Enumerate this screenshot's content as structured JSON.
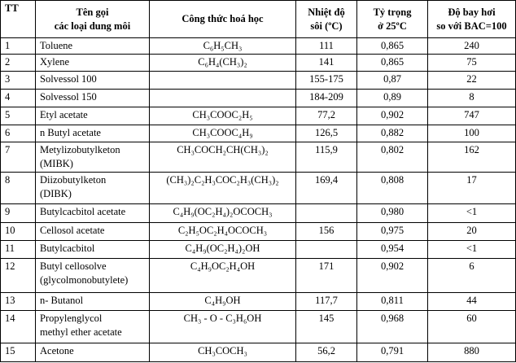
{
  "table": {
    "header": [
      "TT",
      "Tên gọi\ncác loại dung môi",
      "Công thức hoá học",
      "Nhiệt độ\nsôi (ºC)",
      "Tỷ trọng\nở 25ºC",
      "Độ bay hơi\nso với BAC=100"
    ],
    "rows": [
      [
        "1",
        "Toluene",
        "C₆H₅CH₃",
        "111",
        "0,865",
        "240"
      ],
      [
        "2",
        "Xylene",
        "C₆H₄(CH₃)₂",
        "141",
        "0,865",
        "75"
      ],
      [
        "3",
        "Solvessol 100",
        null,
        "155-175",
        "0,87",
        "22"
      ],
      [
        "4",
        "Solvessol 150",
        null,
        "184-209",
        "0,89",
        "8"
      ],
      [
        "5",
        "Etyl acetate",
        "CH₃COOC₂H₅",
        "77,2",
        "0,902",
        "747"
      ],
      [
        "6",
        "n Butyl acetate",
        "CH₃COOC₄H₉",
        "126,5",
        "0,882",
        "100"
      ],
      [
        "7",
        "Metylizobutylketon\n(MIBK)",
        "CH₃COCH₂CH(CH₃)₂",
        "115,9",
        "0,802",
        "162"
      ],
      [
        "8",
        "Diizobutylketon\n(DIBK)",
        "(CH₃)₂C₂H₃COC₂H₃(CH₃)₂",
        "169,4",
        "0,808",
        "17"
      ],
      [
        "9",
        "Butylcacbitol acetate",
        "C₄H₉(OC₂H₄)₂OCOCH₃",
        null,
        "0,980",
        "<1"
      ],
      [
        "10",
        "Cellosol acetate",
        "C₂H₅OC₂H₄OCOCH₃",
        "156",
        "0,975",
        "20"
      ],
      [
        "11",
        "Butylcacbitol",
        "C₄H₉(OC₂H₄)₂OH",
        null,
        "0,954",
        "<1"
      ],
      [
        "12",
        "Butyl cellosolve\n(glycolmonobutylete)",
        "C₄H₉OC₂H₄OH",
        "171",
        "0,902",
        "6"
      ],
      [
        "13",
        "n- Butanol",
        "C₄H₉OH",
        "117,7",
        "0,811",
        "44"
      ],
      [
        "14",
        "Propylenglycol\nmethyl ether acetate",
        "CH₃ - O - C₃H₆OH",
        "145",
        "0,968",
        "60"
      ],
      [
        "15",
        "Acetone",
        "CH₃COCH₃",
        "56,2",
        "0,791",
        "880"
      ]
    ]
  }
}
